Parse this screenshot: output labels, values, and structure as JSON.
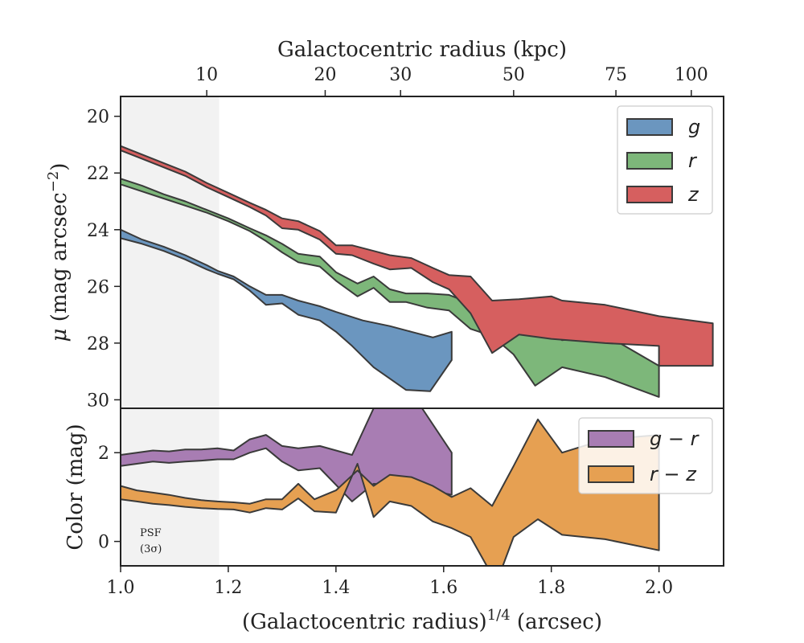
{
  "chart_data": [
    {
      "type": "area",
      "panel": "top",
      "xlabel": "(Galactocentric radius)^1/4 (arcsec)",
      "ylabel": "μ (mag arcsec⁻²)",
      "top_xlabel": "Galactocentric radius (kpc)",
      "xlim": [
        1.0,
        2.12
      ],
      "ylim": [
        30.3,
        19.3
      ],
      "y_inverted": true,
      "yticks": [
        20,
        22,
        24,
        26,
        28,
        30
      ],
      "ytick_labels": [
        "20",
        "22",
        "24",
        "26",
        "28",
        "30"
      ],
      "top_ticks": [
        {
          "label": "10",
          "x": 1.16
        },
        {
          "label": "20",
          "x": 1.38
        },
        {
          "label": "30",
          "x": 1.52
        },
        {
          "label": "50",
          "x": 1.73
        },
        {
          "label": "75",
          "x": 1.92
        },
        {
          "label": "100",
          "x": 2.06
        }
      ],
      "shaded_region_x": [
        1.0,
        1.183
      ],
      "grid": false,
      "legend_position": "top-right",
      "series": [
        {
          "name": "g",
          "color": "#6b96bf",
          "upper": [
            [
              1.0,
              24.0
            ],
            [
              1.04,
              24.35
            ],
            [
              1.08,
              24.6
            ],
            [
              1.12,
              24.9
            ],
            [
              1.16,
              25.25
            ],
            [
              1.18,
              25.45
            ],
            [
              1.21,
              25.65
            ],
            [
              1.24,
              26.0
            ],
            [
              1.27,
              26.3
            ],
            [
              1.3,
              26.3
            ],
            [
              1.33,
              26.5
            ],
            [
              1.37,
              26.7
            ],
            [
              1.4,
              26.9
            ],
            [
              1.45,
              27.2
            ],
            [
              1.5,
              27.4
            ],
            [
              1.54,
              27.6
            ],
            [
              1.58,
              27.8
            ],
            [
              1.615,
              27.6
            ]
          ],
          "lower": [
            [
              1.0,
              24.3
            ],
            [
              1.04,
              24.5
            ],
            [
              1.08,
              24.75
            ],
            [
              1.12,
              25.05
            ],
            [
              1.16,
              25.4
            ],
            [
              1.18,
              25.55
            ],
            [
              1.21,
              25.75
            ],
            [
              1.24,
              26.15
            ],
            [
              1.27,
              26.65
            ],
            [
              1.3,
              26.6
            ],
            [
              1.33,
              27.0
            ],
            [
              1.37,
              27.2
            ],
            [
              1.4,
              27.6
            ],
            [
              1.43,
              28.1
            ],
            [
              1.47,
              28.85
            ],
            [
              1.53,
              29.65
            ],
            [
              1.575,
              29.7
            ],
            [
              1.615,
              28.6
            ]
          ]
        },
        {
          "name": "r",
          "color": "#7db77a",
          "upper": [
            [
              1.0,
              22.2
            ],
            [
              1.04,
              22.45
            ],
            [
              1.08,
              22.75
            ],
            [
              1.12,
              23.0
            ],
            [
              1.16,
              23.3
            ],
            [
              1.2,
              23.6
            ],
            [
              1.24,
              23.95
            ],
            [
              1.27,
              24.2
            ],
            [
              1.3,
              24.5
            ],
            [
              1.33,
              24.85
            ],
            [
              1.37,
              24.95
            ],
            [
              1.4,
              25.5
            ],
            [
              1.44,
              25.9
            ],
            [
              1.47,
              25.65
            ],
            [
              1.5,
              26.1
            ],
            [
              1.53,
              26.25
            ],
            [
              1.57,
              26.25
            ],
            [
              1.61,
              26.3
            ],
            [
              1.65,
              26.6
            ],
            [
              1.69,
              27.1
            ],
            [
              1.72,
              27.6
            ],
            [
              1.77,
              27.4
            ],
            [
              1.82,
              27.9
            ],
            [
              1.9,
              27.7
            ],
            [
              2.0,
              28.8
            ]
          ],
          "lower": [
            [
              1.0,
              22.4
            ],
            [
              1.04,
              22.65
            ],
            [
              1.08,
              22.9
            ],
            [
              1.12,
              23.15
            ],
            [
              1.16,
              23.4
            ],
            [
              1.2,
              23.7
            ],
            [
              1.24,
              24.05
            ],
            [
              1.27,
              24.4
            ],
            [
              1.3,
              24.8
            ],
            [
              1.33,
              25.15
            ],
            [
              1.37,
              25.3
            ],
            [
              1.4,
              25.8
            ],
            [
              1.44,
              26.35
            ],
            [
              1.47,
              26.05
            ],
            [
              1.5,
              26.55
            ],
            [
              1.53,
              26.55
            ],
            [
              1.57,
              26.75
            ],
            [
              1.61,
              26.85
            ],
            [
              1.65,
              27.5
            ],
            [
              1.69,
              27.75
            ],
            [
              1.73,
              28.4
            ],
            [
              1.77,
              29.5
            ],
            [
              1.82,
              28.85
            ],
            [
              1.9,
              29.2
            ],
            [
              2.0,
              29.9
            ]
          ]
        },
        {
          "name": "z",
          "color": "#d65f5f",
          "upper": [
            [
              1.0,
              21.05
            ],
            [
              1.04,
              21.35
            ],
            [
              1.08,
              21.65
            ],
            [
              1.12,
              21.95
            ],
            [
              1.16,
              22.35
            ],
            [
              1.2,
              22.7
            ],
            [
              1.24,
              23.05
            ],
            [
              1.27,
              23.3
            ],
            [
              1.3,
              23.6
            ],
            [
              1.33,
              23.7
            ],
            [
              1.37,
              24.05
            ],
            [
              1.4,
              24.55
            ],
            [
              1.43,
              24.55
            ],
            [
              1.47,
              24.75
            ],
            [
              1.5,
              24.9
            ],
            [
              1.54,
              25.0
            ],
            [
              1.58,
              25.35
            ],
            [
              1.61,
              25.6
            ],
            [
              1.65,
              25.65
            ],
            [
              1.69,
              26.5
            ],
            [
              1.74,
              26.45
            ],
            [
              1.8,
              26.35
            ],
            [
              1.82,
              26.5
            ],
            [
              1.9,
              26.65
            ],
            [
              2.0,
              27.05
            ],
            [
              2.1,
              27.3
            ]
          ],
          "lower": [
            [
              1.0,
              21.2
            ],
            [
              1.04,
              21.5
            ],
            [
              1.08,
              21.8
            ],
            [
              1.12,
              22.1
            ],
            [
              1.16,
              22.5
            ],
            [
              1.2,
              22.85
            ],
            [
              1.24,
              23.2
            ],
            [
              1.27,
              23.5
            ],
            [
              1.3,
              23.95
            ],
            [
              1.33,
              24.0
            ],
            [
              1.37,
              24.35
            ],
            [
              1.4,
              24.85
            ],
            [
              1.43,
              24.9
            ],
            [
              1.47,
              25.2
            ],
            [
              1.5,
              25.4
            ],
            [
              1.54,
              25.35
            ],
            [
              1.58,
              25.85
            ],
            [
              1.61,
              26.1
            ],
            [
              1.65,
              26.95
            ],
            [
              1.69,
              28.35
            ],
            [
              1.74,
              27.7
            ],
            [
              1.8,
              27.85
            ],
            [
              1.9,
              28.0
            ],
            [
              2.0,
              28.1
            ],
            [
              2.0,
              28.8
            ],
            [
              2.1,
              28.8
            ]
          ]
        }
      ]
    },
    {
      "type": "area",
      "panel": "bottom",
      "ylabel": "Color (mag)",
      "xlabel": "(Galactocentric radius)^1/4 (arcsec)",
      "xlim": [
        1.0,
        2.12
      ],
      "ylim": [
        -0.55,
        3.0
      ],
      "yticks": [
        0,
        2
      ],
      "ytick_labels": [
        "0",
        "2"
      ],
      "xticks": [
        1.0,
        1.2,
        1.4,
        1.6,
        1.8,
        2.0
      ],
      "xtick_labels": [
        "1.0",
        "1.2",
        "1.4",
        "1.6",
        "1.8",
        "2.0"
      ],
      "annotation": "PSF (3σ)",
      "legend_position": "top-right",
      "series": [
        {
          "name": "g − r",
          "color": "#a87db3",
          "upper": [
            [
              1.0,
              1.95
            ],
            [
              1.03,
              2.0
            ],
            [
              1.06,
              2.05
            ],
            [
              1.09,
              2.03
            ],
            [
              1.12,
              2.07
            ],
            [
              1.15,
              2.07
            ],
            [
              1.18,
              2.1
            ],
            [
              1.21,
              2.05
            ],
            [
              1.24,
              2.3
            ],
            [
              1.27,
              2.4
            ],
            [
              1.3,
              2.15
            ],
            [
              1.33,
              2.1
            ],
            [
              1.37,
              2.15
            ],
            [
              1.43,
              1.95
            ],
            [
              1.47,
              3.0
            ],
            [
              1.56,
              3.0
            ],
            [
              1.615,
              2.0
            ]
          ],
          "lower": [
            [
              1.0,
              1.7
            ],
            [
              1.03,
              1.75
            ],
            [
              1.06,
              1.8
            ],
            [
              1.09,
              1.77
            ],
            [
              1.12,
              1.8
            ],
            [
              1.15,
              1.82
            ],
            [
              1.18,
              1.85
            ],
            [
              1.21,
              1.85
            ],
            [
              1.24,
              2.0
            ],
            [
              1.27,
              2.1
            ],
            [
              1.3,
              1.8
            ],
            [
              1.33,
              1.6
            ],
            [
              1.37,
              1.65
            ],
            [
              1.43,
              0.9
            ],
            [
              1.47,
              1.3
            ],
            [
              1.56,
              1.2
            ],
            [
              1.615,
              1.05
            ]
          ]
        },
        {
          "name": "r − z",
          "color": "#e6a052",
          "upper": [
            [
              1.0,
              1.25
            ],
            [
              1.03,
              1.15
            ],
            [
              1.06,
              1.1
            ],
            [
              1.09,
              1.05
            ],
            [
              1.12,
              0.98
            ],
            [
              1.15,
              0.93
            ],
            [
              1.18,
              0.9
            ],
            [
              1.21,
              0.88
            ],
            [
              1.24,
              0.85
            ],
            [
              1.27,
              0.95
            ],
            [
              1.3,
              0.95
            ],
            [
              1.33,
              1.3
            ],
            [
              1.36,
              0.95
            ],
            [
              1.4,
              1.15
            ],
            [
              1.44,
              1.6
            ],
            [
              1.47,
              1.25
            ],
            [
              1.5,
              1.5
            ],
            [
              1.54,
              1.45
            ],
            [
              1.58,
              1.25
            ],
            [
              1.615,
              1.0
            ],
            [
              1.65,
              1.2
            ],
            [
              1.69,
              0.8
            ],
            [
              1.73,
              1.7
            ],
            [
              1.775,
              2.75
            ],
            [
              1.82,
              2.0
            ],
            [
              1.9,
              2.3
            ],
            [
              2.0,
              2.4
            ]
          ],
          "lower": [
            [
              1.0,
              0.95
            ],
            [
              1.03,
              0.9
            ],
            [
              1.06,
              0.85
            ],
            [
              1.09,
              0.82
            ],
            [
              1.12,
              0.78
            ],
            [
              1.15,
              0.75
            ],
            [
              1.18,
              0.73
            ],
            [
              1.21,
              0.72
            ],
            [
              1.24,
              0.65
            ],
            [
              1.27,
              0.75
            ],
            [
              1.3,
              0.72
            ],
            [
              1.33,
              0.97
            ],
            [
              1.36,
              0.68
            ],
            [
              1.4,
              0.65
            ],
            [
              1.44,
              1.75
            ],
            [
              1.47,
              0.55
            ],
            [
              1.5,
              0.9
            ],
            [
              1.54,
              0.8
            ],
            [
              1.58,
              0.45
            ],
            [
              1.615,
              0.3
            ],
            [
              1.65,
              0.1
            ],
            [
              1.68,
              -0.55
            ],
            [
              1.71,
              -0.55
            ],
            [
              1.73,
              0.1
            ],
            [
              1.775,
              0.5
            ],
            [
              1.82,
              0.15
            ],
            [
              1.9,
              0.05
            ],
            [
              2.0,
              -0.2
            ]
          ]
        }
      ]
    }
  ],
  "labels": {
    "top_axis_title": "Galactocentric radius (kpc)",
    "psf_line1": "PSF",
    "psf_line2": "(3σ)"
  }
}
